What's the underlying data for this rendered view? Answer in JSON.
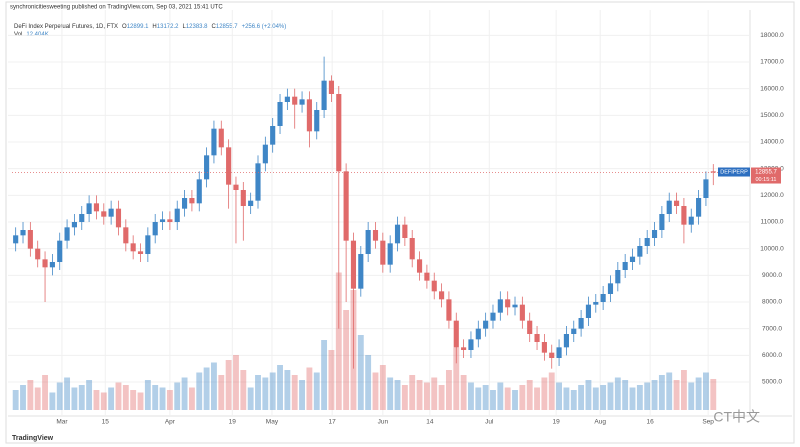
{
  "header": "synchronicitiesweeting published on TradingView.com, Sep 03, 2021 15:41 UTC",
  "footer": "TradingView",
  "watermark": "CT中文",
  "chart_data": {
    "type": "candlestick",
    "title": "DeFi Index Perpetual Futures, 1D, FTX",
    "legend_keys": [
      "O",
      "H",
      "L",
      "C"
    ],
    "change": "+256.6 (+2.04%)",
    "volume_title": "Vol",
    "volume_current_label": "12.404K",
    "symbol": "DEFIPERP",
    "countdown": "00:15:11",
    "up_color": "#3f86c6",
    "down_color": "#e06a6a",
    "grid": true,
    "xlim": [
      -0.5,
      100
    ],
    "xticks": [
      {
        "value": 6.3,
        "label": "Mar"
      },
      {
        "value": 12.2,
        "label": "15"
      },
      {
        "value": 21,
        "label": "Apr"
      },
      {
        "value": 29.5,
        "label": "19"
      },
      {
        "value": 34.9,
        "label": "May"
      },
      {
        "value": 43.1,
        "label": "17"
      },
      {
        "value": 50,
        "label": "Jun"
      },
      {
        "value": 56.4,
        "label": "14"
      },
      {
        "value": 64.5,
        "label": "Jul"
      },
      {
        "value": 73.6,
        "label": "19"
      },
      {
        "value": 79.6,
        "label": "Aug"
      },
      {
        "value": 86.4,
        "label": "16"
      },
      {
        "value": 94.3,
        "label": "Sep"
      }
    ],
    "ylim": [
      3950,
      18950
    ],
    "yticks": [
      {
        "value": 5000,
        "label": "5000.0"
      },
      {
        "value": 6000,
        "label": "6000.0"
      },
      {
        "value": 7000,
        "label": "7000.0"
      },
      {
        "value": 8000,
        "label": "8000.0"
      },
      {
        "value": 9000,
        "label": "9000.0"
      },
      {
        "value": 10000,
        "label": "10000.0"
      },
      {
        "value": 11000,
        "label": "11000.0"
      },
      {
        "value": 12000,
        "label": "12000.0"
      },
      {
        "value": 13000,
        "label": "13000.0"
      },
      {
        "value": 14000,
        "label": "14000.0"
      },
      {
        "value": 15000,
        "label": "15000.0"
      },
      {
        "value": 16000,
        "label": "16000.0"
      },
      {
        "value": 17000,
        "label": "17000.0"
      },
      {
        "value": 18000,
        "label": "18000.0"
      }
    ],
    "volume_lim": [
      0,
      60
    ],
    "ohlc": [
      [
        10200,
        10800,
        9900,
        10500
      ],
      [
        10500,
        11000,
        10200,
        10700
      ],
      [
        10700,
        11000,
        9700,
        10000
      ],
      [
        10000,
        10300,
        9300,
        9600
      ],
      [
        9600,
        9900,
        8000,
        9300
      ],
      [
        9300,
        9800,
        9000,
        9500
      ],
      [
        9500,
        10600,
        9200,
        10300
      ],
      [
        10300,
        11100,
        10000,
        10800
      ],
      [
        10800,
        11300,
        10500,
        11000
      ],
      [
        11000,
        11600,
        10700,
        11300
      ],
      [
        11300,
        12000,
        11000,
        11700
      ],
      [
        11700,
        12000,
        11100,
        11400
      ],
      [
        11400,
        11700,
        10900,
        11200
      ],
      [
        11200,
        11800,
        10900,
        11500
      ],
      [
        11500,
        11800,
        10500,
        10800
      ],
      [
        10800,
        11100,
        9900,
        10200
      ],
      [
        10200,
        10500,
        9600,
        9900
      ],
      [
        9900,
        10200,
        9500,
        9800
      ],
      [
        9800,
        10800,
        9500,
        10500
      ],
      [
        10500,
        11300,
        10200,
        11000
      ],
      [
        11000,
        11400,
        10700,
        11100
      ],
      [
        11100,
        11400,
        10700,
        11000
      ],
      [
        11000,
        11800,
        10700,
        11500
      ],
      [
        11500,
        12200,
        11200,
        11900
      ],
      [
        11900,
        12200,
        11400,
        11700
      ],
      [
        11700,
        12900,
        11400,
        12600
      ],
      [
        12600,
        13800,
        12300,
        13500
      ],
      [
        13500,
        14800,
        13200,
        14500
      ],
      [
        14500,
        14800,
        13500,
        13800
      ],
      [
        13800,
        14100,
        11500,
        12400
      ],
      [
        12400,
        12700,
        10200,
        12200
      ],
      [
        12200,
        12500,
        10300,
        11600
      ],
      [
        11600,
        12100,
        11300,
        11800
      ],
      [
        11800,
        13500,
        11500,
        13200
      ],
      [
        13200,
        14200,
        12900,
        13900
      ],
      [
        13900,
        14900,
        13600,
        14600
      ],
      [
        14600,
        15800,
        14300,
        15500
      ],
      [
        15500,
        16000,
        15200,
        15700
      ],
      [
        15700,
        16000,
        14500,
        15400
      ],
      [
        15400,
        15900,
        15100,
        15600
      ],
      [
        15600,
        15900,
        13800,
        14400
      ],
      [
        14400,
        15500,
        14100,
        15200
      ],
      [
        15200,
        17200,
        14900,
        16300
      ],
      [
        16300,
        16500,
        15500,
        15800
      ],
      [
        15800,
        16100,
        7000,
        12900
      ],
      [
        12900,
        13200,
        8000,
        10300
      ],
      [
        10300,
        10600,
        5500,
        8500
      ],
      [
        8500,
        10100,
        8200,
        9800
      ],
      [
        9800,
        11000,
        9500,
        10700
      ],
      [
        10700,
        11000,
        10000,
        10300
      ],
      [
        10300,
        10600,
        9100,
        9400
      ],
      [
        9400,
        10500,
        9100,
        10200
      ],
      [
        10200,
        11200,
        9900,
        10900
      ],
      [
        10900,
        11200,
        10100,
        10400
      ],
      [
        10400,
        10700,
        9300,
        9600
      ],
      [
        9600,
        9900,
        8800,
        9100
      ],
      [
        9100,
        9400,
        8500,
        8800
      ],
      [
        8800,
        9100,
        8100,
        8400
      ],
      [
        8400,
        8700,
        7800,
        8100
      ],
      [
        8100,
        8400,
        7000,
        7300
      ],
      [
        7300,
        7600,
        5700,
        6300
      ],
      [
        6300,
        6600,
        5900,
        6200
      ],
      [
        6200,
        6900,
        5900,
        6600
      ],
      [
        6600,
        7300,
        6300,
        7000
      ],
      [
        7000,
        7600,
        6700,
        7300
      ],
      [
        7300,
        7900,
        7000,
        7600
      ],
      [
        7600,
        8400,
        7300,
        8100
      ],
      [
        8100,
        8400,
        7500,
        7800
      ],
      [
        7800,
        8200,
        7500,
        7900
      ],
      [
        7900,
        8200,
        7000,
        7300
      ],
      [
        7300,
        7600,
        6500,
        6800
      ],
      [
        6800,
        7100,
        6200,
        6500
      ],
      [
        6500,
        6800,
        5800,
        6100
      ],
      [
        6100,
        6400,
        5500,
        5900
      ],
      [
        5900,
        6600,
        5600,
        6300
      ],
      [
        6300,
        7100,
        6000,
        6800
      ],
      [
        6800,
        7300,
        6500,
        7000
      ],
      [
        7000,
        7700,
        6700,
        7400
      ],
      [
        7400,
        8200,
        7100,
        7900
      ],
      [
        7900,
        8300,
        7600,
        8000
      ],
      [
        8000,
        8600,
        7700,
        8300
      ],
      [
        8300,
        9000,
        8000,
        8700
      ],
      [
        8700,
        9500,
        8400,
        9200
      ],
      [
        9200,
        9800,
        8900,
        9500
      ],
      [
        9500,
        10000,
        9200,
        9700
      ],
      [
        9700,
        10400,
        9400,
        10100
      ],
      [
        10100,
        10700,
        9800,
        10400
      ],
      [
        10400,
        11000,
        10100,
        10700
      ],
      [
        10700,
        11600,
        10400,
        11300
      ],
      [
        11300,
        12100,
        11000,
        11800
      ],
      [
        11800,
        12100,
        11300,
        11600
      ],
      [
        11600,
        11900,
        10200,
        10900
      ],
      [
        10900,
        11500,
        10600,
        11200
      ],
      [
        11200,
        12200,
        10900,
        11900
      ],
      [
        11900,
        12900,
        11600,
        12600
      ],
      [
        12899.1,
        13172.2,
        12383.8,
        12855.7
      ]
    ],
    "volume": [
      8,
      10,
      12,
      9,
      14,
      7,
      11,
      13,
      9,
      10,
      12,
      8,
      7,
      9,
      11,
      10,
      8,
      7,
      12,
      10,
      9,
      8,
      11,
      13,
      9,
      15,
      17,
      19,
      14,
      20,
      22,
      16,
      9,
      14,
      13,
      15,
      18,
      16,
      14,
      12,
      17,
      15,
      28,
      24,
      55,
      40,
      48,
      30,
      22,
      15,
      18,
      13,
      12,
      10,
      14,
      12,
      11,
      13,
      10,
      16,
      25,
      14,
      11,
      9,
      10,
      8,
      11,
      9,
      8,
      10,
      12,
      9,
      13,
      15,
      11,
      9,
      8,
      10,
      12,
      9,
      10,
      11,
      13,
      12,
      9,
      10,
      11,
      12,
      14,
      15,
      12,
      16,
      11,
      13,
      15,
      12.404
    ]
  }
}
